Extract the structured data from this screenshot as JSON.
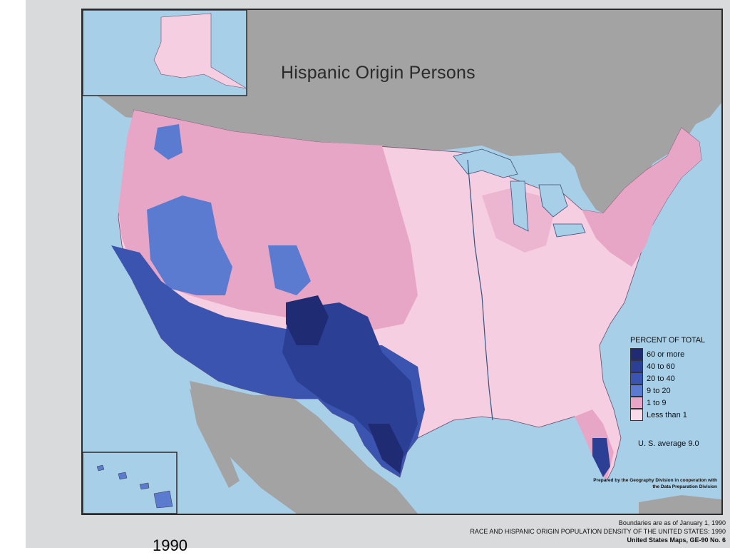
{
  "map": {
    "title": "Hispanic Origin Persons",
    "legend": {
      "title": "PERCENT OF TOTAL",
      "items": [
        {
          "label": "60 or more",
          "color": "#1f2b72"
        },
        {
          "label": "40 to 60",
          "color": "#2b3f94"
        },
        {
          "label": "20 to 40",
          "color": "#3a54b0"
        },
        {
          "label": "9 to 20",
          "color": "#5b7bd0"
        },
        {
          "label": "1 to 9",
          "color": "#e8a6c6"
        },
        {
          "label": "Less than 1",
          "color": "#f7dbe9"
        }
      ]
    },
    "us_average": "U. S. average 9.0",
    "prepared_note": "Prepared by the Geography Division in cooperation with the Data Preparation Division"
  },
  "footer": {
    "line1": "Boundaries are as of January 1, 1990",
    "line2": "RACE AND HISPANIC ORIGIN POPULATION DENSITY OF THE UNITED STATES:  1990",
    "line3": "United States Maps, GE-90 No. 6"
  },
  "year_label": "1990",
  "colors": {
    "water": "#a7cfe8",
    "land_other": "#a3a3a3",
    "sheet": "#d9dadb"
  }
}
